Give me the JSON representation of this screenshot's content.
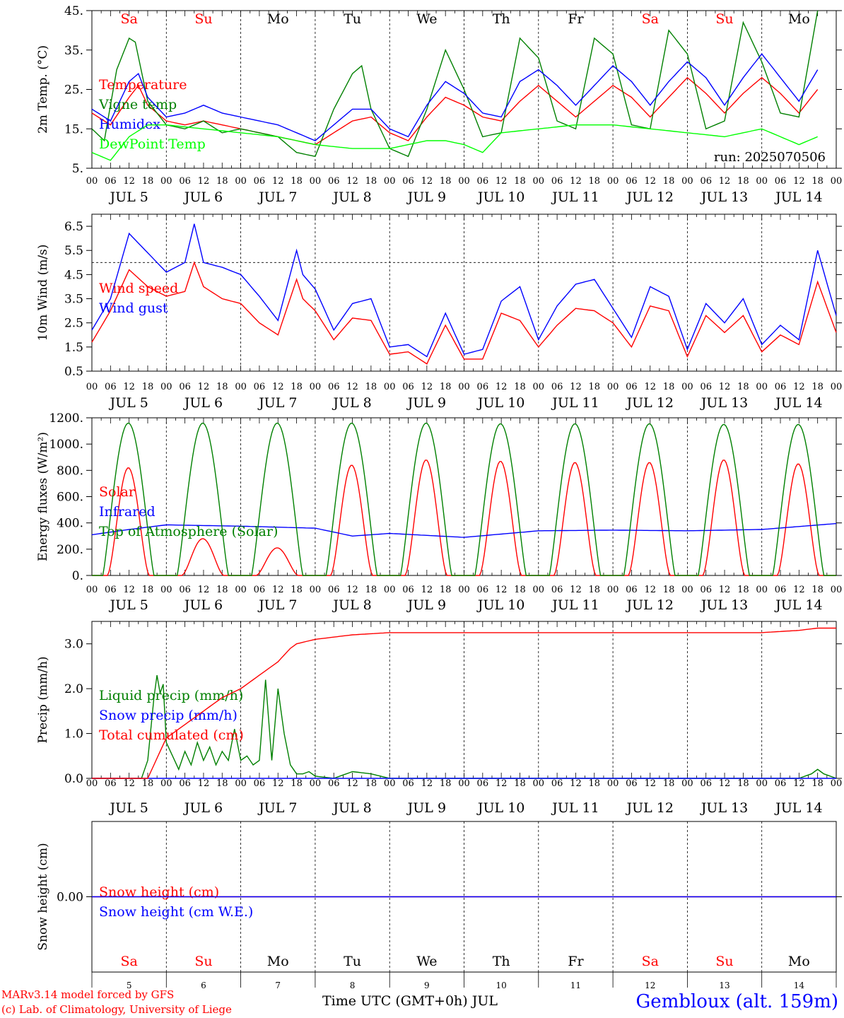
{
  "chart_data": [
    {
      "type": "line",
      "ylabel": "2m Temp. (°C)",
      "yticks": [
        "5.",
        "15.",
        "25.",
        "35.",
        "45."
      ],
      "ylim": [
        5,
        45
      ],
      "x_unit": "hours since JUL 5 00 UTC",
      "run_label": "run: 2025070506",
      "series": [
        {
          "name": "Temperature",
          "color": "#ff0000",
          "x": [
            0,
            6,
            12,
            15,
            18,
            24,
            30,
            36,
            42,
            48,
            54,
            60,
            66,
            72,
            78,
            84,
            90,
            96,
            102,
            108,
            114,
            120,
            126,
            132,
            138,
            144,
            150,
            156,
            162,
            168,
            174,
            180,
            186,
            192,
            198,
            204,
            210,
            216,
            222,
            228,
            234
          ],
          "values": [
            19,
            16,
            23,
            26,
            21,
            17,
            16,
            17,
            16,
            15,
            14,
            13,
            12,
            11,
            14,
            17,
            18,
            14,
            12,
            18,
            23,
            21,
            18,
            17,
            22,
            26,
            22,
            18,
            22,
            26,
            23,
            18,
            23,
            28,
            24,
            19,
            24,
            28,
            24,
            19,
            25
          ]
        },
        {
          "name": "Vigne temp",
          "color": "#008000",
          "x": [
            0,
            4,
            8,
            12,
            14,
            18,
            24,
            30,
            36,
            42,
            48,
            54,
            60,
            66,
            72,
            78,
            84,
            87,
            90,
            96,
            102,
            108,
            114,
            120,
            126,
            132,
            138,
            144,
            150,
            156,
            162,
            168,
            174,
            180,
            186,
            192,
            198,
            204,
            210,
            216,
            222,
            228,
            234
          ],
          "values": [
            15,
            12,
            30,
            38,
            37,
            22,
            16,
            15,
            17,
            14,
            15,
            14,
            13,
            9,
            8,
            20,
            29,
            31,
            20,
            10,
            8,
            20,
            35,
            25,
            13,
            14,
            38,
            33,
            17,
            15,
            38,
            34,
            16,
            15,
            40,
            34,
            15,
            17,
            42,
            32,
            19,
            18,
            45
          ]
        },
        {
          "name": "Humidex",
          "color": "#0000ff",
          "x": [
            0,
            6,
            12,
            15,
            18,
            24,
            30,
            36,
            42,
            48,
            54,
            60,
            66,
            72,
            78,
            84,
            90,
            96,
            102,
            108,
            114,
            120,
            126,
            132,
            138,
            144,
            150,
            156,
            162,
            168,
            174,
            180,
            186,
            192,
            198,
            204,
            210,
            216,
            222,
            228,
            234
          ],
          "values": [
            20,
            17,
            27,
            29,
            23,
            18,
            19,
            21,
            19,
            18,
            17,
            16,
            14,
            12,
            16,
            20,
            20,
            15,
            13,
            21,
            27,
            24,
            19,
            18,
            27,
            30,
            26,
            21,
            26,
            31,
            27,
            21,
            27,
            32,
            28,
            21,
            28,
            34,
            28,
            22,
            30
          ]
        },
        {
          "name": "DewPoint Temp",
          "color": "#00ff00",
          "x": [
            0,
            6,
            12,
            18,
            24,
            36,
            48,
            60,
            72,
            84,
            96,
            108,
            114,
            120,
            126,
            132,
            144,
            156,
            168,
            180,
            192,
            204,
            216,
            222,
            228,
            234
          ],
          "values": [
            9,
            7,
            13,
            16,
            16,
            15,
            14,
            13,
            11,
            10,
            10,
            12,
            12,
            11,
            9,
            14,
            15,
            16,
            16,
            15,
            14,
            13,
            15,
            13,
            11,
            13
          ]
        }
      ]
    },
    {
      "type": "line",
      "ylabel": "10m Wind (m/s)",
      "yticks": [
        "0.5",
        "1.5",
        "2.5",
        "3.5",
        "4.5",
        "5.5",
        "6.5"
      ],
      "ylim": [
        0.5,
        7.0
      ],
      "reference_line": 5.0,
      "series": [
        {
          "name": "Wind speed",
          "color": "#ff0000",
          "x": [
            0,
            6,
            12,
            18,
            24,
            30,
            33,
            36,
            42,
            48,
            54,
            60,
            66,
            68,
            72,
            78,
            84,
            90,
            96,
            102,
            108,
            114,
            120,
            126,
            132,
            138,
            144,
            150,
            156,
            162,
            168,
            174,
            180,
            186,
            192,
            198,
            204,
            210,
            216,
            222,
            228,
            234,
            240
          ],
          "values": [
            1.7,
            3.0,
            4.7,
            4.0,
            3.6,
            3.8,
            5.0,
            4.0,
            3.5,
            3.3,
            2.5,
            2.0,
            4.3,
            3.5,
            3.0,
            1.8,
            2.7,
            2.6,
            1.2,
            1.3,
            0.8,
            2.4,
            1.0,
            1.0,
            2.9,
            2.6,
            1.5,
            2.4,
            3.1,
            3.0,
            2.5,
            1.5,
            3.2,
            3.0,
            1.1,
            2.8,
            2.1,
            2.8,
            1.3,
            2.0,
            1.6,
            4.2,
            2.1
          ]
        },
        {
          "name": "Wind gust",
          "color": "#0000ff",
          "x": [
            0,
            6,
            12,
            18,
            24,
            30,
            33,
            36,
            42,
            48,
            54,
            60,
            66,
            68,
            72,
            78,
            84,
            90,
            96,
            102,
            108,
            114,
            120,
            126,
            132,
            138,
            144,
            150,
            156,
            162,
            168,
            174,
            180,
            186,
            192,
            198,
            204,
            210,
            216,
            222,
            228,
            234,
            240
          ],
          "values": [
            2.2,
            3.5,
            6.2,
            5.4,
            4.6,
            5.0,
            6.6,
            5.0,
            4.8,
            4.5,
            3.6,
            2.6,
            5.5,
            4.5,
            3.9,
            2.2,
            3.3,
            3.5,
            1.5,
            1.6,
            1.1,
            2.9,
            1.2,
            1.4,
            3.4,
            4.0,
            1.8,
            3.2,
            4.1,
            4.3,
            3.1,
            1.9,
            4.0,
            3.6,
            1.4,
            3.3,
            2.5,
            3.5,
            1.6,
            2.4,
            1.8,
            5.5,
            2.8
          ]
        }
      ]
    },
    {
      "type": "line",
      "ylabel": "Energy fluxes (W/m²)",
      "yticks": [
        "0.",
        "200.",
        "400.",
        "600.",
        "800.",
        "1000.",
        "1200."
      ],
      "ylim": [
        0,
        1200
      ],
      "series": [
        {
          "name": "Solar",
          "color": "#ff0000",
          "daily_peak": [
            820,
            280,
            210,
            840,
            880,
            870,
            860,
            860,
            880,
            850
          ]
        },
        {
          "name": "Infrared",
          "color": "#0000ff",
          "x": [
            0,
            12,
            24,
            48,
            72,
            84,
            96,
            120,
            144,
            168,
            192,
            216,
            240
          ],
          "values": [
            310,
            350,
            385,
            375,
            360,
            300,
            320,
            290,
            340,
            345,
            340,
            350,
            395
          ]
        },
        {
          "name": "Top of Atmosphere (Solar)",
          "color": "#008000",
          "daily_peak": [
            1160,
            1160,
            1160,
            1160,
            1160,
            1155,
            1155,
            1155,
            1150,
            1150
          ]
        }
      ]
    },
    {
      "type": "line",
      "ylabel": "Precip (mm/h)",
      "yticks": [
        "0.0",
        "1.0",
        "2.0",
        "3.0"
      ],
      "ylim": [
        0,
        3.5
      ],
      "series": [
        {
          "name": "Liquid precip (mm/h)",
          "color": "#008000",
          "x": [
            0,
            16,
            18,
            20,
            21,
            22,
            23,
            24,
            26,
            28,
            30,
            32,
            34,
            36,
            38,
            40,
            42,
            44,
            46,
            48,
            50,
            52,
            54,
            56,
            58,
            60,
            62,
            64,
            66,
            68,
            70,
            72,
            78,
            84,
            90,
            96,
            228,
            232,
            234,
            236,
            240
          ],
          "values": [
            0,
            0,
            0.4,
            1.8,
            2.3,
            1.9,
            2.1,
            0.8,
            0.5,
            0.2,
            0.6,
            0.3,
            0.8,
            0.4,
            0.7,
            0.3,
            0.6,
            0.4,
            1.1,
            0.4,
            0.5,
            0.3,
            0.4,
            2.2,
            0.4,
            2.0,
            1.0,
            0.3,
            0.1,
            0.1,
            0.15,
            0.05,
            0.0,
            0.15,
            0.1,
            0,
            0,
            0.1,
            0.2,
            0.1,
            0
          ]
        },
        {
          "name": "Snow precip (mm/h)",
          "color": "#0000ff",
          "x": [
            0,
            240
          ],
          "values": [
            0,
            0
          ]
        },
        {
          "name": "Total cumulated (cm)",
          "color": "#ff0000",
          "x": [
            0,
            18,
            20,
            24,
            30,
            36,
            42,
            48,
            54,
            60,
            64,
            66,
            72,
            84,
            96,
            108,
            120,
            168,
            216,
            228,
            234,
            240
          ],
          "values": [
            0,
            0,
            0.3,
            0.9,
            1.2,
            1.5,
            1.8,
            2.0,
            2.3,
            2.6,
            2.9,
            3.0,
            3.1,
            3.2,
            3.25,
            3.25,
            3.25,
            3.25,
            3.25,
            3.3,
            3.35,
            3.35
          ]
        }
      ]
    },
    {
      "type": "line",
      "ylabel": "Snow height (cm)",
      "yticks": [
        "0.00"
      ],
      "ylim": [
        -1,
        1
      ],
      "series": [
        {
          "name": "Snow height (cm)",
          "color": "#ff0000",
          "x": [
            0,
            240
          ],
          "values": [
            0,
            0
          ]
        },
        {
          "name": "Snow height (cm W.E.)",
          "color": "#0000ff",
          "x": [
            0,
            240
          ],
          "values": [
            0,
            0
          ]
        }
      ]
    }
  ],
  "x_axis": {
    "hour_ticks": [
      "00",
      "06",
      "12",
      "18"
    ],
    "end_tick": "00",
    "dates": [
      "JUL  5",
      "JUL  6",
      "JUL  7",
      "JUL  8",
      "JUL  9",
      "JUL 10",
      "JUL 11",
      "JUL 12",
      "JUL 13",
      "JUL 14"
    ],
    "weekdays": [
      {
        "label": "Sa",
        "color": "#ff0000"
      },
      {
        "label": "Su",
        "color": "#ff0000"
      },
      {
        "label": "Mo",
        "color": "#000000"
      },
      {
        "label": "Tu",
        "color": "#000000"
      },
      {
        "label": "We",
        "color": "#000000"
      },
      {
        "label": "Th",
        "color": "#000000"
      },
      {
        "label": "Fr",
        "color": "#000000"
      },
      {
        "label": "Sa",
        "color": "#ff0000"
      },
      {
        "label": "Su",
        "color": "#ff0000"
      },
      {
        "label": "Mo",
        "color": "#000000"
      }
    ],
    "day_numbers": [
      "5",
      "6",
      "7",
      "8",
      "9",
      "10",
      "11",
      "12",
      "13",
      "14"
    ],
    "title": "Time UTC (GMT+0h) JUL"
  },
  "footer": {
    "credit_line1": "MARv3.14 model forced by GFS",
    "credit_line2": "(c) Lab. of Climatology, University of Liege",
    "station": "Gembloux (alt. 159m)"
  }
}
